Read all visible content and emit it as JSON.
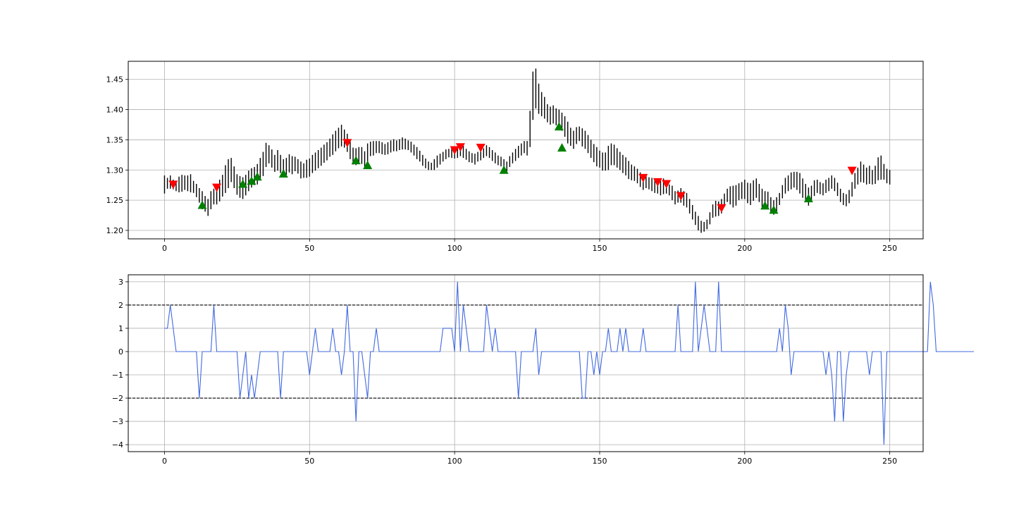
{
  "chart_data": [
    {
      "type": "bar",
      "subtype": "ohlc-bars",
      "grid": true,
      "xlim": [
        -12.5,
        261.5
      ],
      "ylim": [
        1.186,
        1.48
      ],
      "xticks": [
        0,
        50,
        100,
        150,
        200,
        250
      ],
      "yticks": [
        1.2,
        1.25,
        1.3,
        1.35,
        1.4,
        1.45
      ],
      "ytick_labels": [
        "1.20",
        "1.25",
        "1.30",
        "1.35",
        "1.40",
        "1.45"
      ],
      "xtick_labels": [
        "0",
        "50",
        "100",
        "150",
        "200",
        "250"
      ],
      "bar_color": "#000000",
      "x_start": 0,
      "mid": [
        1.276,
        1.278,
        1.28,
        1.276,
        1.272,
        1.276,
        1.278,
        1.279,
        1.278,
        1.278,
        1.272,
        1.266,
        1.258,
        1.25,
        1.244,
        1.238,
        1.25,
        1.256,
        1.258,
        1.266,
        1.274,
        1.285,
        1.294,
        1.3,
        1.288,
        1.276,
        1.272,
        1.27,
        1.275,
        1.282,
        1.287,
        1.29,
        1.293,
        1.302,
        1.31,
        1.325,
        1.326,
        1.319,
        1.311,
        1.316,
        1.31,
        1.303,
        1.306,
        1.311,
        1.308,
        1.31,
        1.306,
        1.3,
        1.299,
        1.302,
        1.304,
        1.31,
        1.314,
        1.318,
        1.322,
        1.327,
        1.331,
        1.337,
        1.342,
        1.348,
        1.353,
        1.357,
        1.352,
        1.345,
        1.334,
        1.323,
        1.322,
        1.324,
        1.324,
        1.318,
        1.327,
        1.335,
        1.336,
        1.338,
        1.338,
        1.336,
        1.334,
        1.336,
        1.339,
        1.341,
        1.34,
        1.342,
        1.344,
        1.343,
        1.341,
        1.338,
        1.333,
        1.328,
        1.323,
        1.316,
        1.311,
        1.307,
        1.306,
        1.309,
        1.314,
        1.318,
        1.322,
        1.326,
        1.328,
        1.329,
        1.326,
        1.329,
        1.333,
        1.33,
        1.326,
        1.322,
        1.32,
        1.318,
        1.322,
        1.324,
        1.328,
        1.332,
        1.329,
        1.324,
        1.32,
        1.316,
        1.314,
        1.31,
        1.306,
        1.314,
        1.32,
        1.325,
        1.33,
        1.334,
        1.338,
        1.336,
        1.368,
        1.423,
        1.435,
        1.418,
        1.409,
        1.403,
        1.394,
        1.39,
        1.392,
        1.388,
        1.384,
        1.38,
        1.372,
        1.362,
        1.355,
        1.35,
        1.357,
        1.36,
        1.354,
        1.35,
        1.343,
        1.335,
        1.328,
        1.322,
        1.318,
        1.314,
        1.314,
        1.32,
        1.326,
        1.325,
        1.32,
        1.315,
        1.31,
        1.306,
        1.3,
        1.296,
        1.294,
        1.29,
        1.284,
        1.28,
        1.281,
        1.278,
        1.276,
        1.274,
        1.272,
        1.27,
        1.273,
        1.271,
        1.267,
        1.262,
        1.254,
        1.256,
        1.258,
        1.253,
        1.25,
        1.24,
        1.23,
        1.22,
        1.212,
        1.206,
        1.206,
        1.21,
        1.22,
        1.232,
        1.236,
        1.236,
        1.24,
        1.25,
        1.258,
        1.258,
        1.256,
        1.258,
        1.264,
        1.266,
        1.268,
        1.262,
        1.26,
        1.266,
        1.27,
        1.262,
        1.254,
        1.25,
        1.25,
        1.242,
        1.238,
        1.243,
        1.252,
        1.264,
        1.274,
        1.278,
        1.282,
        1.284,
        1.282,
        1.278,
        1.27,
        1.262,
        1.256,
        1.262,
        1.27,
        1.273,
        1.27,
        1.268,
        1.273,
        1.276,
        1.28,
        1.276,
        1.268,
        1.258,
        1.252,
        1.25,
        1.256,
        1.268,
        1.282,
        1.29,
        1.297,
        1.294,
        1.29,
        1.292,
        1.288,
        1.292,
        1.302,
        1.304,
        1.297,
        1.29,
        1.288
      ],
      "range": [
        0.03,
        0.018,
        0.022,
        0.016,
        0.014,
        0.026,
        0.028,
        0.024,
        0.026,
        0.03,
        0.02,
        0.022,
        0.024,
        0.03,
        0.026,
        0.028,
        0.03,
        0.026,
        0.03,
        0.036,
        0.036,
        0.046,
        0.048,
        0.04,
        0.036,
        0.034,
        0.036,
        0.036,
        0.034,
        0.034,
        0.032,
        0.03,
        0.034,
        0.036,
        0.04,
        0.04,
        0.03,
        0.03,
        0.028,
        0.034,
        0.03,
        0.03,
        0.028,
        0.03,
        0.03,
        0.024,
        0.024,
        0.028,
        0.024,
        0.03,
        0.03,
        0.03,
        0.03,
        0.03,
        0.03,
        0.03,
        0.03,
        0.03,
        0.034,
        0.034,
        0.034,
        0.036,
        0.03,
        0.03,
        0.032,
        0.028,
        0.028,
        0.028,
        0.028,
        0.026,
        0.034,
        0.024,
        0.024,
        0.02,
        0.02,
        0.02,
        0.018,
        0.02,
        0.02,
        0.02,
        0.018,
        0.018,
        0.02,
        0.018,
        0.016,
        0.018,
        0.018,
        0.02,
        0.018,
        0.018,
        0.016,
        0.014,
        0.012,
        0.018,
        0.02,
        0.018,
        0.016,
        0.016,
        0.014,
        0.018,
        0.014,
        0.018,
        0.02,
        0.02,
        0.018,
        0.018,
        0.016,
        0.018,
        0.016,
        0.016,
        0.016,
        0.018,
        0.018,
        0.018,
        0.018,
        0.016,
        0.016,
        0.016,
        0.016,
        0.018,
        0.018,
        0.02,
        0.02,
        0.02,
        0.02,
        0.024,
        0.06,
        0.08,
        0.066,
        0.05,
        0.04,
        0.036,
        0.03,
        0.03,
        0.03,
        0.028,
        0.032,
        0.03,
        0.034,
        0.036,
        0.03,
        0.03,
        0.028,
        0.024,
        0.03,
        0.03,
        0.03,
        0.03,
        0.03,
        0.032,
        0.028,
        0.03,
        0.03,
        0.04,
        0.036,
        0.034,
        0.032,
        0.03,
        0.03,
        0.03,
        0.03,
        0.026,
        0.024,
        0.024,
        0.024,
        0.026,
        0.022,
        0.02,
        0.022,
        0.024,
        0.022,
        0.024,
        0.026,
        0.02,
        0.018,
        0.024,
        0.022,
        0.02,
        0.024,
        0.024,
        0.024,
        0.024,
        0.024,
        0.022,
        0.024,
        0.02,
        0.016,
        0.016,
        0.02,
        0.022,
        0.026,
        0.024,
        0.024,
        0.022,
        0.022,
        0.03,
        0.036,
        0.034,
        0.028,
        0.028,
        0.032,
        0.034,
        0.036,
        0.034,
        0.032,
        0.03,
        0.03,
        0.03,
        0.028,
        0.026,
        0.024,
        0.024,
        0.02,
        0.022,
        0.026,
        0.026,
        0.028,
        0.026,
        0.03,
        0.034,
        0.032,
        0.03,
        0.03,
        0.024,
        0.026,
        0.022,
        0.02,
        0.02,
        0.022,
        0.022,
        0.022,
        0.022,
        0.022,
        0.022,
        0.02,
        0.02,
        0.022,
        0.024,
        0.026,
        0.028,
        0.034,
        0.03,
        0.028,
        0.03,
        0.024,
        0.03,
        0.038,
        0.04,
        0.026,
        0.024,
        0.024
      ],
      "markers": [
        {
          "type": "sell",
          "x": 3,
          "y": 1.276
        },
        {
          "type": "buy",
          "x": 13,
          "y": 1.242
        },
        {
          "type": "sell",
          "x": 18,
          "y": 1.271
        },
        {
          "type": "buy",
          "x": 27,
          "y": 1.277
        },
        {
          "type": "buy",
          "x": 30,
          "y": 1.282
        },
        {
          "type": "buy",
          "x": 32,
          "y": 1.289
        },
        {
          "type": "buy",
          "x": 41,
          "y": 1.294
        },
        {
          "type": "sell",
          "x": 63,
          "y": 1.345
        },
        {
          "type": "buy",
          "x": 66,
          "y": 1.316
        },
        {
          "type": "buy",
          "x": 70,
          "y": 1.308
        },
        {
          "type": "sell",
          "x": 100,
          "y": 1.333
        },
        {
          "type": "sell",
          "x": 102,
          "y": 1.338
        },
        {
          "type": "sell",
          "x": 109,
          "y": 1.337
        },
        {
          "type": "buy",
          "x": 117,
          "y": 1.3
        },
        {
          "type": "buy",
          "x": 136,
          "y": 1.372
        },
        {
          "type": "buy",
          "x": 137,
          "y": 1.337
        },
        {
          "type": "sell",
          "x": 165,
          "y": 1.287
        },
        {
          "type": "sell",
          "x": 170,
          "y": 1.28
        },
        {
          "type": "sell",
          "x": 173,
          "y": 1.277
        },
        {
          "type": "sell",
          "x": 178,
          "y": 1.257
        },
        {
          "type": "sell",
          "x": 192,
          "y": 1.237
        },
        {
          "type": "buy",
          "x": 207,
          "y": 1.241
        },
        {
          "type": "buy",
          "x": 210,
          "y": 1.234
        },
        {
          "type": "buy",
          "x": 222,
          "y": 1.253
        },
        {
          "type": "sell",
          "x": 237,
          "y": 1.299
        }
      ],
      "marker_colors": {
        "buy": "#008000",
        "sell": "#ff0000"
      }
    },
    {
      "type": "line",
      "grid": true,
      "xlim": [
        -12.5,
        261.5
      ],
      "ylim": [
        -4.3,
        3.3
      ],
      "xticks": [
        0,
        50,
        100,
        150,
        200,
        250
      ],
      "yticks": [
        3,
        2,
        1,
        0,
        -1,
        -2,
        -3,
        -4
      ],
      "xtick_labels": [
        "0",
        "50",
        "100",
        "150",
        "200",
        "250"
      ],
      "ytick_labels": [
        "3",
        "2",
        "1",
        "0",
        "−1",
        "−2",
        "−3",
        "−4"
      ],
      "series": [
        {
          "color": "#4169e1",
          "x_start": 0,
          "values": [
            1,
            1,
            2,
            1,
            0,
            0,
            0,
            0,
            0,
            0,
            0,
            0,
            -2,
            0,
            0,
            0,
            0,
            2,
            0,
            0,
            0,
            0,
            0,
            0,
            0,
            0,
            -2,
            -1,
            0,
            -2,
            -1,
            -2,
            -1,
            0,
            0,
            0,
            0,
            0,
            0,
            0,
            -2,
            0,
            0,
            0,
            0,
            0,
            0,
            0,
            0,
            0,
            -1,
            0,
            1,
            0,
            0,
            0,
            0,
            0,
            1,
            0,
            0,
            -1,
            0,
            2,
            0,
            0,
            -3,
            0,
            0,
            -1,
            -2,
            0,
            0,
            1,
            0,
            0,
            0,
            0,
            0,
            0,
            0,
            0,
            0,
            0,
            0,
            0,
            0,
            0,
            0,
            0,
            0,
            0,
            0,
            0,
            0,
            0,
            1,
            1,
            1,
            1,
            0,
            3,
            0,
            2,
            1,
            0,
            0,
            0,
            0,
            0,
            0,
            2,
            1,
            0,
            1,
            0,
            0,
            0,
            0,
            0,
            0,
            0,
            -2,
            0,
            0,
            0,
            0,
            0,
            1,
            -1,
            0,
            0,
            0,
            0,
            0,
            0,
            0,
            0,
            0,
            0,
            0,
            0,
            0,
            0,
            -2,
            -2,
            0,
            0,
            -1,
            0,
            -1,
            0,
            0,
            1,
            0,
            0,
            0,
            1,
            0,
            1,
            0,
            0,
            0,
            0,
            0,
            1,
            0,
            0,
            0,
            0,
            0,
            0,
            0,
            0,
            0,
            0,
            0,
            2,
            0,
            0,
            0,
            0,
            0,
            3,
            0,
            1,
            2,
            1,
            0,
            0,
            0,
            3,
            0,
            0,
            0,
            0,
            0,
            0,
            0,
            0,
            0,
            0,
            0,
            0,
            0,
            0,
            0,
            0,
            0,
            0,
            0,
            0,
            1,
            0,
            2,
            1,
            -1,
            0,
            0,
            0,
            0,
            0,
            0,
            0,
            0,
            0,
            0,
            0,
            -1,
            0,
            -1,
            -3,
            0,
            0,
            -3,
            -1,
            0,
            0,
            0,
            0,
            0,
            0,
            0,
            -1,
            0,
            0,
            0,
            0,
            -4,
            0,
            0,
            0,
            0,
            0,
            0,
            0,
            0,
            0,
            0,
            0,
            0,
            0,
            0,
            0,
            3,
            2,
            0,
            0,
            0,
            0,
            0,
            0,
            0,
            0,
            0,
            0,
            0,
            0,
            0,
            0
          ]
        }
      ],
      "hlines": [
        {
          "y": 2,
          "style": "dashed",
          "color": "#000000"
        },
        {
          "y": -2,
          "style": "dashed",
          "color": "#000000"
        }
      ]
    }
  ]
}
